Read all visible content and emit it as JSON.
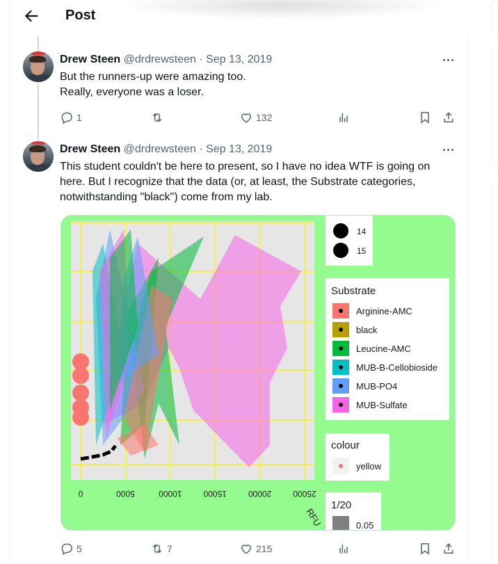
{
  "header": {
    "title": "Post",
    "back_icon": "arrow-left-icon"
  },
  "tweets": [
    {
      "name": "Drew Steen",
      "handle": "@drdrewsteen",
      "sep": "·",
      "date": "Sep 13, 2019",
      "lines": [
        "But the runners-up were amazing too.",
        "Really, everyone was a loser."
      ],
      "replies": "1",
      "retweets": "",
      "likes": "132"
    },
    {
      "name": "Drew Steen",
      "handle": "@drdrewsteen",
      "sep": "·",
      "date": "Sep 13, 2019",
      "lines": [
        "This student couldn't be here to present, so I have no idea WTF is going on",
        "here. But I recognize that the data (or, at least, the Substrate categories,",
        "notwithstanding \"black\") come from my lab."
      ],
      "replies": "5",
      "retweets": "7",
      "likes": "215"
    }
  ],
  "chart_data": {
    "type": "scatter",
    "background_color": "#94fb8f",
    "panel_color": "#e6e6e6",
    "grid_color": "#f7f04a",
    "xlabel": "RFU",
    "xlim": [
      0,
      25000
    ],
    "xticks": [
      "0",
      "5000",
      "10000",
      "15000",
      "20000",
      "25000"
    ],
    "legend_size": {
      "items": [
        "14",
        "15"
      ]
    },
    "legend_substrate": {
      "title": "Substrate",
      "items": [
        {
          "label": "Arginine-AMC",
          "color": "#f8766d"
        },
        {
          "label": "black",
          "color": "#b79f00"
        },
        {
          "label": "Leucine-AMC",
          "color": "#00ba38"
        },
        {
          "label": "MUB-B-Cellobioside",
          "color": "#00bfc4"
        },
        {
          "label": "MUB-PO4",
          "color": "#619cff"
        },
        {
          "label": "MUB-Sulfate",
          "color": "#f564e3"
        }
      ]
    },
    "legend_colour": {
      "title": "colour",
      "items": [
        {
          "label": "yellow",
          "color": "#f8766d"
        }
      ]
    },
    "legend_alpha": {
      "title": "1/20",
      "items": [
        {
          "label": "0.05"
        }
      ]
    }
  }
}
